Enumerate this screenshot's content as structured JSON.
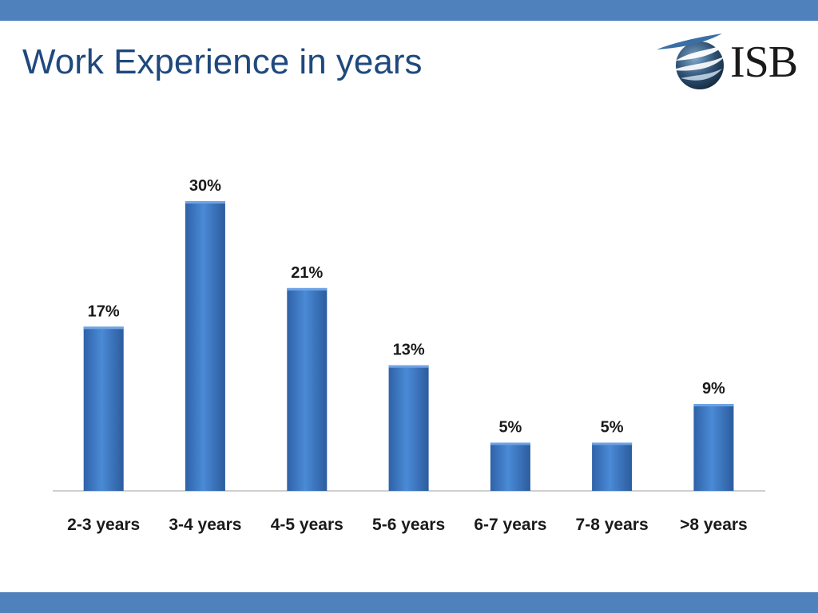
{
  "slide": {
    "title": "Work Experience in years",
    "logo_text": "ISB",
    "band_color": "#4f81bd",
    "title_color": "#1f497d"
  },
  "chart_data": {
    "type": "bar",
    "title": "",
    "xlabel": "",
    "ylabel": "",
    "categories": [
      "2-3 years",
      "3-4 years",
      "4-5 years",
      "5-6 years",
      "6-7 years",
      "7-8 years",
      ">8 years"
    ],
    "values": [
      17,
      30,
      21,
      13,
      5,
      5,
      9
    ],
    "value_labels": [
      "17%",
      "30%",
      "21%",
      "13%",
      "5%",
      "5%",
      "9%"
    ],
    "unit": "%",
    "ylim": [
      0,
      34
    ],
    "grid": false,
    "legend": "none",
    "bar_color": "#3a76c4"
  }
}
